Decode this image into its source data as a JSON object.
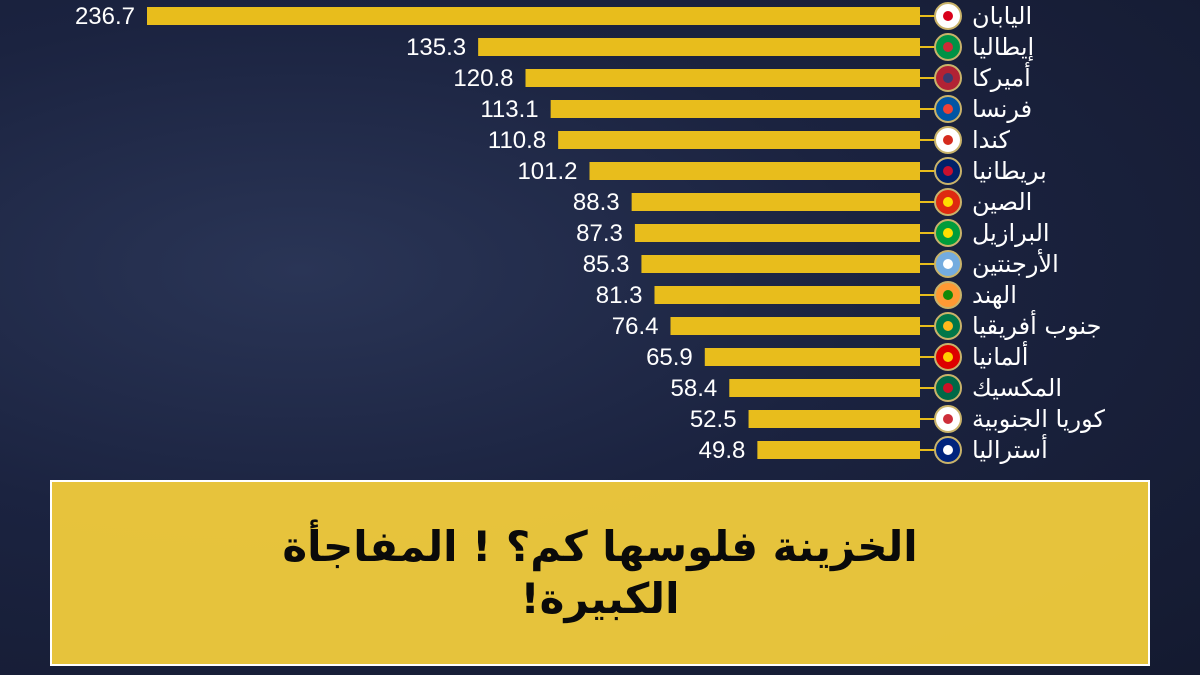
{
  "chart_data": {
    "type": "bar",
    "orientation": "horizontal",
    "direction": "right-to-left",
    "categories": [
      "اليابان",
      "إيطاليا",
      "أميركا",
      "فرنسا",
      "كندا",
      "بريطانيا",
      "الصين",
      "البرازيل",
      "الأرجنتين",
      "الهند",
      "جنوب أفريقيا",
      "ألمانيا",
      "المكسيك",
      "كوريا الجنوبية",
      "أستراليا"
    ],
    "values": [
      236.7,
      135.3,
      120.8,
      113.1,
      110.8,
      101.2,
      88.3,
      87.3,
      85.3,
      81.3,
      76.4,
      65.9,
      58.4,
      52.5,
      49.8
    ],
    "value_labels": [
      "236.7",
      "135.3",
      "120.8",
      "113.1",
      "110.8",
      "101.2",
      "88.3",
      "87.3",
      "85.3",
      "81.3",
      "76.4",
      "65.9",
      "58.4",
      "52.5",
      "49.8"
    ],
    "flags": [
      "japan-flag",
      "italy-flag",
      "usa-flag",
      "france-flag",
      "canada-flag",
      "uk-flag",
      "china-flag",
      "brazil-flag",
      "argentina-flag",
      "india-flag",
      "south-africa-flag",
      "germany-flag",
      "mexico-flag",
      "south-korea-flag",
      "australia-flag"
    ],
    "bar_color": "#e8bd1c",
    "grid": false,
    "legend": "none"
  },
  "overlay": {
    "title": "الخزينة فلوسها كم؟ ! المفاجأة الكبيرة!",
    "background": "#f6d03c"
  },
  "colors": {
    "background": "#1b2340",
    "text": "#ffffff"
  }
}
